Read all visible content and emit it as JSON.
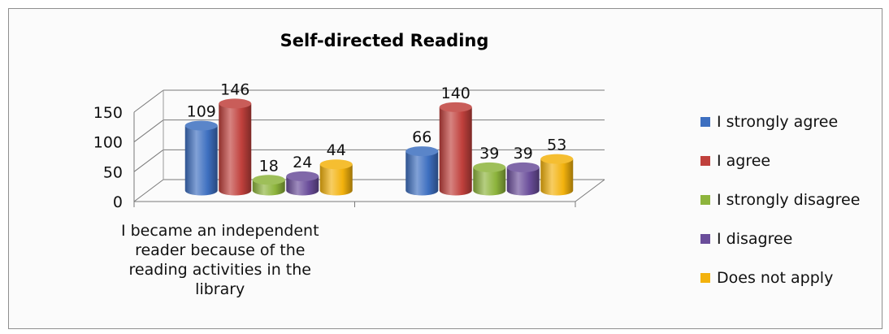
{
  "chart_data": {
    "type": "bar",
    "title": "Self-directed Reading",
    "categories": [
      "I became an independent reader because of the reading activities in the library",
      ""
    ],
    "category_lines": [
      [
        "I became an independent",
        "reader because of the",
        "reading activities in the",
        "library"
      ],
      []
    ],
    "series": [
      {
        "name": "I strongly agree",
        "color": "#3d6fc0",
        "values": [
          109,
          66
        ]
      },
      {
        "name": "I agree",
        "color": "#c0403c",
        "values": [
          146,
          140
        ]
      },
      {
        "name": "I strongly disagree",
        "color": "#8db43c",
        "values": [
          18,
          39
        ]
      },
      {
        "name": "I disagree",
        "color": "#6a4d9a",
        "values": [
          24,
          39
        ]
      },
      {
        "name": "Does not apply",
        "color": "#f3b20d",
        "values": [
          44,
          53
        ]
      }
    ],
    "yticks": [
      0,
      50,
      100,
      150
    ],
    "ylim": [
      0,
      150
    ],
    "grid": true,
    "legend_position": "right",
    "chart_style": "3d-cylinder"
  }
}
